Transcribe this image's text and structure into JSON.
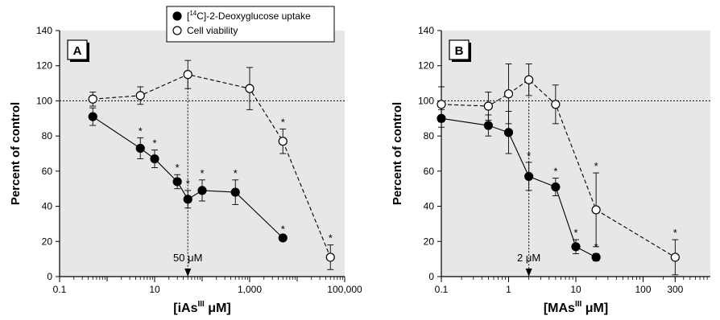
{
  "chart_data": [
    {
      "type": "line",
      "panel_label": "A",
      "xlabel": "[iAs",
      "xlabel_sup": "III",
      "xlabel_unit": " μM]",
      "ylabel": "Percent of control",
      "x_scale": "log",
      "xlim": [
        0.1,
        100000
      ],
      "ylim": [
        0,
        140
      ],
      "x_ticks": [
        0.1,
        10,
        1000,
        100000
      ],
      "x_tick_labels": [
        "0.1",
        "10",
        "1,000",
        "100,000"
      ],
      "y_ticks": [
        0,
        20,
        40,
        60,
        80,
        100,
        120,
        140
      ],
      "y_tick_labels": [
        "0",
        "20",
        "40",
        "60",
        "80",
        "100",
        "120",
        "140"
      ],
      "reference_line_y": 100,
      "vline_x": 50,
      "vline_label": "50 μM",
      "background": "#e7e7e7",
      "series": [
        {
          "name": "[14C]-2-Deoxyglucose uptake",
          "marker": "filled",
          "line": "solid",
          "points": [
            {
              "x": 0.5,
              "y": 91,
              "err": 5,
              "sig": false
            },
            {
              "x": 5,
              "y": 73,
              "err": 6,
              "sig": true
            },
            {
              "x": 10,
              "y": 67,
              "err": 5,
              "sig": true
            },
            {
              "x": 30,
              "y": 54,
              "err": 4,
              "sig": true
            },
            {
              "x": 50,
              "y": 44,
              "err": 5,
              "sig": true
            },
            {
              "x": 100,
              "y": 49,
              "err": 6,
              "sig": true
            },
            {
              "x": 500,
              "y": 48,
              "err": 7,
              "sig": true
            },
            {
              "x": 5000,
              "y": 22,
              "err": 1,
              "sig": true
            }
          ]
        },
        {
          "name": "Cell viability",
          "marker": "open",
          "line": "dashed",
          "points": [
            {
              "x": 0.5,
              "y": 101,
              "err": 4,
              "sig": false
            },
            {
              "x": 5,
              "y": 103,
              "err": 5,
              "sig": false
            },
            {
              "x": 50,
              "y": 115,
              "err": 8,
              "sig": false
            },
            {
              "x": 1000,
              "y": 107,
              "err": 12,
              "sig": false
            },
            {
              "x": 5000,
              "y": 77,
              "err": 7,
              "sig": true
            },
            {
              "x": 50000,
              "y": 11,
              "err": 7,
              "sig": true
            }
          ]
        }
      ]
    },
    {
      "type": "line",
      "panel_label": "B",
      "xlabel": "[MAs",
      "xlabel_sup": "III",
      "xlabel_unit": " μM]",
      "ylabel": "Percent of control",
      "x_scale": "log",
      "xlim": [
        0.1,
        1000
      ],
      "ylim": [
        0,
        140
      ],
      "x_ticks": [
        0.1,
        1,
        10,
        100,
        300
      ],
      "x_tick_labels": [
        "0.1",
        "1",
        "10",
        "100",
        "300"
      ],
      "y_ticks": [
        0,
        20,
        40,
        60,
        80,
        100,
        120,
        140
      ],
      "y_tick_labels": [
        "0",
        "20",
        "40",
        "60",
        "80",
        "100",
        "120",
        "140"
      ],
      "reference_line_y": 100,
      "vline_x": 2,
      "vline_label": "2 μM",
      "background": "#e7e7e7",
      "series": [
        {
          "name": "[14C]-2-Deoxyglucose uptake",
          "marker": "filled",
          "line": "solid",
          "points": [
            {
              "x": 0.1,
              "y": 90,
              "err": 5,
              "sig": false
            },
            {
              "x": 0.5,
              "y": 86,
              "err": 6,
              "sig": true
            },
            {
              "x": 1,
              "y": 82,
              "err": 12,
              "sig": false
            },
            {
              "x": 2,
              "y": 57,
              "err": 8,
              "sig": true
            },
            {
              "x": 5,
              "y": 51,
              "err": 5,
              "sig": true
            },
            {
              "x": 10,
              "y": 17,
              "err": 4,
              "sig": true
            },
            {
              "x": 20,
              "y": 11,
              "err": 2,
              "sig": true
            }
          ]
        },
        {
          "name": "Cell viability",
          "marker": "open",
          "line": "dashed",
          "points": [
            {
              "x": 0.1,
              "y": 98,
              "err": 10,
              "sig": false
            },
            {
              "x": 0.5,
              "y": 97,
              "err": 8,
              "sig": false
            },
            {
              "x": 1,
              "y": 104,
              "err": 17,
              "sig": false
            },
            {
              "x": 2,
              "y": 112,
              "err": 9,
              "sig": false
            },
            {
              "x": 5,
              "y": 98,
              "err": 11,
              "sig": false
            },
            {
              "x": 20,
              "y": 38,
              "err": 21,
              "sig": true
            },
            {
              "x": 300,
              "y": 11,
              "err": 10,
              "sig": true
            }
          ]
        }
      ]
    }
  ],
  "legend": {
    "items": [
      {
        "marker": "filled",
        "pre": "[",
        "sup": "14",
        "post": "C]-2-Deoxyglucose uptake"
      },
      {
        "marker": "open",
        "pre": "Cell viability",
        "sup": "",
        "post": ""
      }
    ]
  },
  "significance_marker": "*"
}
